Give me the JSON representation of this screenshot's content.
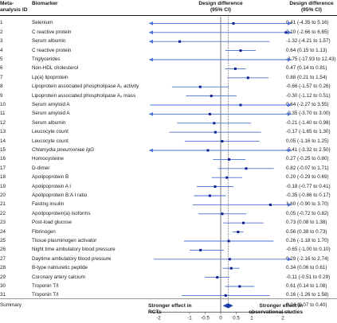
{
  "headers": {
    "col_id": "Meta-analysis ID",
    "col_biomarker": "Biomarker",
    "col_plot": "Design difference (95% CI)",
    "col_value": "Design difference (95% CI)"
  },
  "footer": {
    "left": "Stronger effect in RCTs",
    "right": "Stronger effect in observational studies"
  },
  "colors": {
    "accent": "#1a3ea8",
    "line": "#4a6fd4",
    "marker": "#0b1f8f"
  },
  "chart_data": {
    "type": "forest",
    "xlim": [
      -2,
      2
    ],
    "reference_line": 0,
    "pooled_line": 0.24,
    "xticks": [
      "-2",
      "-1",
      "-0.5",
      "0",
      "0.5",
      "1",
      "2"
    ],
    "rows": [
      {
        "id": "1",
        "label": "Selenium",
        "est": 0.41,
        "lo": -4.35,
        "hi": 5.16,
        "text": "0.41 (-4.35 to 5.16)"
      },
      {
        "id": "2",
        "label": "C reactive protein",
        "est": 2.1,
        "lo": -2.66,
        "hi": 6.65,
        "text": "2.10 (-2.66 to 6.65)"
      },
      {
        "id": "3",
        "label": "Serum albumin",
        "est": -1.32,
        "lo": -4.21,
        "hi": 1.57,
        "text": "-1.32 (-4.21 to 1.57)"
      },
      {
        "id": "4",
        "label": "C reactive protein",
        "est": 0.64,
        "lo": 0.15,
        "hi": 1.13,
        "text": "0.64 (0.15 to 1.13)"
      },
      {
        "id": "5",
        "label": "Triglycerides",
        "est": -2.75,
        "lo": -17.93,
        "hi": 12.43,
        "text": "-2.75 (-17.93 to 12.43)"
      },
      {
        "id": "6",
        "label": "Non-HDL cholesterol",
        "est": 0.47,
        "lo": 0.14,
        "hi": 0.81,
        "text": "0.47 (0.14 to 0.81)"
      },
      {
        "id": "7",
        "label": "Lp(a) lipoprotein",
        "est": 0.88,
        "lo": 0.21,
        "hi": 1.54,
        "text": "0.88 (0.21 to 1.54)"
      },
      {
        "id": "8",
        "label": "Lipoprotein associated phospholipase A₂ activity",
        "est": -0.66,
        "lo": -1.57,
        "hi": 0.26,
        "text": "-0.66 (-1.57 to 0.26)"
      },
      {
        "id": "9",
        "label": "Lipoprotein associated phospholipase A₂ mass",
        "est": -0.3,
        "lo": -1.12,
        "hi": 0.51,
        "text": "-0.30 (-1.12 to 0.51)"
      },
      {
        "id": "10",
        "label": "Serum amyloid A",
        "est": 0.64,
        "lo": -2.27,
        "hi": 3.55,
        "text": "0.64 (-2.27 to 3.55)"
      },
      {
        "id": "11",
        "label": "Serum amyloid A",
        "est": -0.35,
        "lo": -3.7,
        "hi": 3.0,
        "text": "-0.35 (-3.70 to 3.00)"
      },
      {
        "id": "12",
        "label": "Serum albumin",
        "est": -0.21,
        "lo": -1.4,
        "hi": 0.98,
        "text": "-0.21 (-1.40 to 0.98)"
      },
      {
        "id": "13",
        "label": "Leucocyte count",
        "est": -0.17,
        "lo": -1.65,
        "hi": 1.3,
        "text": "-0.17 (-1.65 to 1.30)"
      },
      {
        "id": "14",
        "label": "Leucocyte count",
        "est": 0.05,
        "lo": -1.16,
        "hi": 1.25,
        "text": "0.05 (-1.16 to 1.25)"
      },
      {
        "id": "15",
        "label": "Chlamydia pneumoniae IgG",
        "italic": true,
        "est": -0.41,
        "lo": -3.32,
        "hi": 2.5,
        "text": "-0.41 (-3.32 to 2.50)"
      },
      {
        "id": "16",
        "label": "Homocysteine",
        "est": 0.27,
        "lo": -0.25,
        "hi": 0.8,
        "text": "0.27 (-0.25 to 0.80)"
      },
      {
        "id": "17",
        "label": "D-dimer",
        "est": 0.82,
        "lo": -0.07,
        "hi": 1.71,
        "text": "0.82 (-0.07 to 1.71)"
      },
      {
        "id": "18",
        "label": "Apolipoprotein B",
        "est": 0.2,
        "lo": -0.29,
        "hi": 0.69,
        "text": "0.20 (-0.29 to 0.69)"
      },
      {
        "id": "19",
        "label": "Apolipoprotein A I",
        "est": -0.18,
        "lo": -0.77,
        "hi": 0.41,
        "text": "-0.18 (-0.77 to 0.41)"
      },
      {
        "id": "20",
        "label": "Apolipoprotein B:A I ratio",
        "est": -0.35,
        "lo": -0.86,
        "hi": 0.17,
        "text": "-0.35 (-0.86 to 0.17)"
      },
      {
        "id": "21",
        "label": "Fasting insulin",
        "est": 1.6,
        "lo": -0.9,
        "hi": 3.7,
        "text": "1.60 (-0.90 to 3.70)"
      },
      {
        "id": "22",
        "label": "Apolipoprotein(a) isoforms",
        "est": 0.05,
        "lo": -0.72,
        "hi": 0.82,
        "text": "0.05 (-0.72 to 0.82)"
      },
      {
        "id": "23",
        "label": "Post-load glucose",
        "est": 0.73,
        "lo": 0.08,
        "hi": 1.38,
        "text": "0.73 (0.08 to 1.38)"
      },
      {
        "id": "24",
        "label": "Fibrinogen",
        "est": 0.56,
        "lo": 0.38,
        "hi": 0.73,
        "text": "0.56 (0.38 to 0.73)"
      },
      {
        "id": "25",
        "label": "Tissue plasminogen activator",
        "est": 0.26,
        "lo": -1.18,
        "hi": 1.7,
        "text": "0.26 (-1.18 to 1.70)"
      },
      {
        "id": "26",
        "label": "Night time ambulatory blood pressure",
        "est": -0.65,
        "lo": -1.0,
        "hi": 0.1,
        "text": "-0.65 (-1.00 to 0.10)"
      },
      {
        "id": "27",
        "label": "Daytime ambulatory blood pressure",
        "est": 0.29,
        "lo": -2.16,
        "hi": 2.74,
        "text": "0.29 (-2.16 to 2.74)"
      },
      {
        "id": "28",
        "label": "B-type natriuretic peptide",
        "est": 0.34,
        "lo": 0.06,
        "hi": 0.61,
        "text": "0.34 (0.06 to 0.61)"
      },
      {
        "id": "29",
        "label": "Coronary artery calcium",
        "est": -0.11,
        "lo": -0.51,
        "hi": 0.29,
        "text": "-0.11 (-0.51 to 0.29)"
      },
      {
        "id": "30",
        "label": "Troponin T/I",
        "est": 0.61,
        "lo": 0.14,
        "hi": 1.08,
        "text": "0.61 (0.14 to 1.08)"
      },
      {
        "id": "31",
        "label": "Troponin T/I",
        "est": 0.16,
        "lo": -1.26,
        "hi": 1.58,
        "text": "0.16 (-1.26 to 1.58)"
      }
    ],
    "summary": {
      "label": "Summary",
      "est": 0.24,
      "lo": 0.07,
      "hi": 0.4,
      "text": "0.24 (0.07 to 0.40)"
    }
  }
}
